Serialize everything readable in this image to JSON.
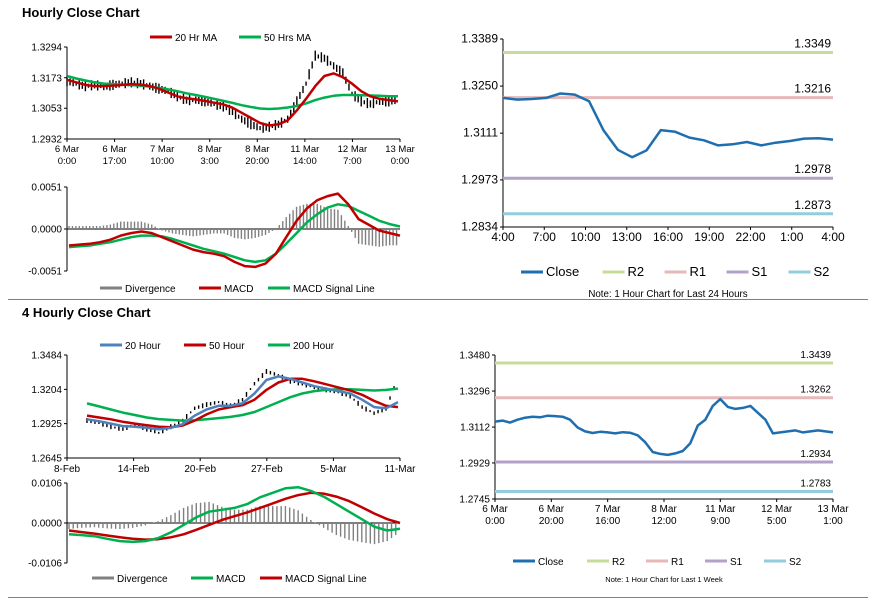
{
  "sections": {
    "hourly_title": "Hourly Close Chart",
    "four_hourly_title": "4 Hourly Close Chart"
  },
  "colors": {
    "close": "#1f6fb0",
    "r2": "#c5dc9a",
    "r1": "#e6b8b7",
    "s1": "#b3a2c7",
    "s2": "#93cddd",
    "ma_red": "#c00000",
    "ma_green": "#00b050",
    "ma_blue": "#4f81bd",
    "divergence": "#808080",
    "candle": "#000000"
  },
  "chart_data": [
    {
      "id": "hourly_price",
      "type": "line",
      "title": "",
      "legend": [
        {
          "name": "20 Hr MA",
          "color": "#c00000"
        },
        {
          "name": "50 Hrs MA",
          "color": "#00b050"
        }
      ],
      "x_tick_labels": [
        [
          "6 Mar",
          "0:00"
        ],
        [
          "6 Mar",
          "17:00"
        ],
        [
          "7 Mar",
          "10:00"
        ],
        [
          "8 Mar",
          "3:00"
        ],
        [
          "8 Mar",
          "20:00"
        ],
        [
          "11 Mar",
          "14:00"
        ],
        [
          "12 Mar",
          "7:00"
        ],
        [
          "13 Mar",
          "0:00"
        ]
      ],
      "y_tick_labels": [
        "1.3294",
        "1.3173",
        "1.3053",
        "1.2932"
      ],
      "ylim": [
        1.2932,
        1.3294
      ],
      "series": [
        {
          "name": "Price",
          "values": [
            1.316,
            1.315,
            1.314,
            1.3145,
            1.3138,
            1.3145,
            1.315,
            1.3155,
            1.315,
            1.314,
            1.313,
            1.312,
            1.31,
            1.3085,
            1.3085,
            1.308,
            1.307,
            1.306,
            1.304,
            1.301,
            1.299,
            1.2975,
            1.298,
            1.299,
            1.301,
            1.308,
            1.315,
            1.326,
            1.325,
            1.322,
            1.319,
            1.311,
            1.308,
            1.307,
            1.308,
            1.308,
            1.3085
          ]
        },
        {
          "name": "20 Hr MA",
          "values": [
            1.3165,
            1.3155,
            1.3145,
            1.314,
            1.314,
            1.3142,
            1.3145,
            1.3148,
            1.3146,
            1.314,
            1.313,
            1.3115,
            1.31,
            1.3092,
            1.3088,
            1.3082,
            1.3075,
            1.3068,
            1.3055,
            1.3035,
            1.3015,
            1.2995,
            1.2985,
            1.299,
            1.3005,
            1.3045,
            1.309,
            1.314,
            1.318,
            1.319,
            1.3175,
            1.315,
            1.312,
            1.31,
            1.309,
            1.3085,
            1.308
          ]
        },
        {
          "name": "50 Hrs MA",
          "values": [
            1.318,
            1.317,
            1.3162,
            1.3155,
            1.315,
            1.3148,
            1.3146,
            1.3144,
            1.3142,
            1.3138,
            1.3133,
            1.3127,
            1.312,
            1.3112,
            1.3105,
            1.3098,
            1.309,
            1.3082,
            1.3074,
            1.3065,
            1.3058,
            1.3052,
            1.305,
            1.3052,
            1.3056,
            1.3062,
            1.3072,
            1.3085,
            1.3095,
            1.3102,
            1.3105,
            1.3105,
            1.3104,
            1.3103,
            1.3102,
            1.31,
            1.31
          ]
        }
      ]
    },
    {
      "id": "hourly_macd",
      "type": "line",
      "legend": [
        {
          "name": "Divergence",
          "color": "#808080"
        },
        {
          "name": "MACD",
          "color": "#c00000"
        },
        {
          "name": "MACD Signal Line",
          "color": "#00b050"
        }
      ],
      "y_tick_labels": [
        "0.0051",
        "0.0000",
        "-0.0051"
      ],
      "ylim": [
        -0.0051,
        0.0051
      ],
      "series": [
        {
          "name": "MACD",
          "values": [
            -0.002,
            -0.0019,
            -0.0018,
            -0.0016,
            -0.0013,
            -0.0008,
            -0.0005,
            -0.0003,
            -0.0005,
            -0.001,
            -0.0015,
            -0.002,
            -0.0025,
            -0.0028,
            -0.003,
            -0.0033,
            -0.004,
            -0.0045,
            -0.0046,
            -0.0042,
            -0.003,
            -0.001,
            0.001,
            0.0025,
            0.0035,
            0.004,
            0.0043,
            0.003,
            0.0012,
            0.0005,
            -0.0002,
            -0.0005,
            -0.0008
          ]
        },
        {
          "name": "MACD Signal Line",
          "values": [
            -0.0022,
            -0.0021,
            -0.002,
            -0.0018,
            -0.0016,
            -0.0013,
            -0.001,
            -0.0008,
            -0.0008,
            -0.0009,
            -0.0012,
            -0.0016,
            -0.002,
            -0.0024,
            -0.0027,
            -0.003,
            -0.0034,
            -0.0038,
            -0.004,
            -0.0038,
            -0.003,
            -0.0018,
            -0.0005,
            0.0008,
            0.0018,
            0.0026,
            0.003,
            0.0028,
            0.0022,
            0.0016,
            0.001,
            0.0006,
            0.0003
          ]
        }
      ]
    },
    {
      "id": "hourly_levels",
      "type": "line",
      "legend": [
        {
          "name": "Close",
          "color": "#1f6fb0"
        },
        {
          "name": "R2",
          "color": "#c5dc9a"
        },
        {
          "name": "R1",
          "color": "#e6b8b7"
        },
        {
          "name": "S1",
          "color": "#b3a2c7"
        },
        {
          "name": "S2",
          "color": "#93cddd"
        }
      ],
      "x_tick_labels": [
        "4:00",
        "7:00",
        "10:00",
        "13:00",
        "16:00",
        "19:00",
        "22:00",
        "1:00",
        "4:00"
      ],
      "y_tick_labels": [
        "1.3389",
        "1.3250",
        "1.3111",
        "1.2973",
        "1.2834"
      ],
      "ylim": [
        1.2834,
        1.3389
      ],
      "levels": {
        "R2": 1.3349,
        "R1": 1.3216,
        "S1": 1.2978,
        "S2": 1.2873
      },
      "level_labels": [
        "1.3349",
        "1.3216",
        "1.2978",
        "1.2873"
      ],
      "series": [
        {
          "name": "Close",
          "values": [
            1.3215,
            1.321,
            1.3212,
            1.3215,
            1.3228,
            1.3225,
            1.3205,
            1.312,
            1.3062,
            1.304,
            1.306,
            1.312,
            1.3115,
            1.3098,
            1.309,
            1.3075,
            1.3078,
            1.3085,
            1.3075,
            1.3083,
            1.3088,
            1.3095,
            1.3096,
            1.3092
          ]
        }
      ],
      "note": "Note: 1 Hour Chart for Last 24 Hours"
    },
    {
      "id": "four_hourly_price",
      "type": "line",
      "legend": [
        {
          "name": "20 Hour",
          "color": "#4f81bd"
        },
        {
          "name": "50 Hour",
          "color": "#c00000"
        },
        {
          "name": "200 Hour",
          "color": "#00b050"
        }
      ],
      "x_tick_labels": [
        "8-Feb",
        "14-Feb",
        "20-Feb",
        "27-Feb",
        "5-Mar",
        "11-Mar"
      ],
      "y_tick_labels": [
        "1.3484",
        "1.3204",
        "1.2925",
        "1.2645"
      ],
      "ylim": [
        1.2645,
        1.3484
      ],
      "series": [
        {
          "name": "Price",
          "values": [
            1.295,
            1.293,
            1.29,
            1.288,
            1.292,
            1.288,
            1.285,
            1.29,
            1.295,
            1.305,
            1.308,
            1.31,
            1.307,
            1.312,
            1.325,
            1.335,
            1.332,
            1.327,
            1.325,
            1.322,
            1.32,
            1.318,
            1.315,
            1.306,
            1.301,
            1.305,
            1.33
          ]
        },
        {
          "name": "20 Hour",
          "values": [
            1.296,
            1.2945,
            1.2925,
            1.2905,
            1.29,
            1.2892,
            1.288,
            1.289,
            1.292,
            1.299,
            1.304,
            1.307,
            1.307,
            1.309,
            1.317,
            1.328,
            1.331,
            1.329,
            1.326,
            1.323,
            1.321,
            1.319,
            1.317,
            1.312,
            1.306,
            1.305,
            1.31
          ]
        },
        {
          "name": "50 Hour",
          "values": [
            1.299,
            1.2975,
            1.296,
            1.294,
            1.2925,
            1.2912,
            1.29,
            1.2895,
            1.291,
            1.295,
            1.3,
            1.304,
            1.306,
            1.3075,
            1.312,
            1.32,
            1.326,
            1.329,
            1.329,
            1.327,
            1.3245,
            1.322,
            1.3195,
            1.316,
            1.311,
            1.307,
            1.306
          ]
        },
        {
          "name": "200 Hour",
          "values": [
            1.309,
            1.3065,
            1.304,
            1.3015,
            1.2995,
            1.2975,
            1.2962,
            1.2955,
            1.295,
            1.2952,
            1.296,
            1.297,
            1.298,
            1.2995,
            1.302,
            1.306,
            1.31,
            1.314,
            1.317,
            1.319,
            1.32,
            1.3205,
            1.3205,
            1.32,
            1.3195,
            1.32,
            1.321
          ]
        }
      ]
    },
    {
      "id": "four_hourly_macd",
      "type": "line",
      "legend": [
        {
          "name": "Divergence",
          "color": "#808080"
        },
        {
          "name": "MACD",
          "color": "#00b050"
        },
        {
          "name": "MACD Signal Line",
          "color": "#c00000"
        }
      ],
      "y_tick_labels": [
        "0.0106",
        "0.0000",
        "-0.0106"
      ],
      "ylim": [
        -0.0106,
        0.0106
      ],
      "series": [
        {
          "name": "MACD",
          "values": [
            -0.003,
            -0.0032,
            -0.0035,
            -0.0042,
            -0.0048,
            -0.005,
            -0.0048,
            -0.004,
            -0.0025,
            -0.0005,
            0.0015,
            0.003,
            0.0035,
            0.004,
            0.005,
            0.0068,
            0.008,
            0.0092,
            0.0095,
            0.0085,
            0.007,
            0.005,
            0.003,
            0.001,
            -0.001,
            -0.002,
            -0.0015
          ]
        },
        {
          "name": "MACD Signal Line",
          "values": [
            -0.002,
            -0.0024,
            -0.0028,
            -0.0033,
            -0.0038,
            -0.0042,
            -0.0044,
            -0.0043,
            -0.0038,
            -0.003,
            -0.0018,
            -0.0005,
            0.0008,
            0.0018,
            0.0028,
            0.004,
            0.0052,
            0.0064,
            0.0074,
            0.008,
            0.0078,
            0.007,
            0.0058,
            0.0042,
            0.0025,
            0.001,
            0.0
          ]
        }
      ]
    },
    {
      "id": "four_hourly_levels",
      "type": "line",
      "legend": [
        {
          "name": "Close",
          "color": "#1f6fb0"
        },
        {
          "name": "R2",
          "color": "#c5dc9a"
        },
        {
          "name": "R1",
          "color": "#e6b8b7"
        },
        {
          "name": "S1",
          "color": "#b3a2c7"
        },
        {
          "name": "S2",
          "color": "#93cddd"
        }
      ],
      "x_tick_labels": [
        [
          "6 Mar",
          "0:00"
        ],
        [
          "6 Mar",
          "20:00"
        ],
        [
          "7 Mar",
          "16:00"
        ],
        [
          "8 Mar",
          "12:00"
        ],
        [
          "11 Mar",
          "9:00"
        ],
        [
          "12 Mar",
          "5:00"
        ],
        [
          "13 Mar",
          "1:00"
        ]
      ],
      "y_tick_labels": [
        "1.3480",
        "1.3296",
        "1.3112",
        "1.2929",
        "1.2745"
      ],
      "ylim": [
        1.2745,
        1.348
      ],
      "levels": {
        "R2": 1.3439,
        "R1": 1.3262,
        "S1": 1.2934,
        "S2": 1.2783
      },
      "level_labels": [
        "1.3439",
        "1.3262",
        "1.2934",
        "1.2783"
      ],
      "series": [
        {
          "name": "Close",
          "values": [
            1.314,
            1.3145,
            1.3135,
            1.315,
            1.316,
            1.3165,
            1.3162,
            1.317,
            1.3168,
            1.3165,
            1.315,
            1.311,
            1.309,
            1.3082,
            1.3088,
            1.3085,
            1.308,
            1.3086,
            1.3083,
            1.307,
            1.3035,
            1.2985,
            1.2975,
            1.297,
            1.2978,
            1.299,
            1.303,
            1.312,
            1.315,
            1.322,
            1.3255,
            1.3215,
            1.3205,
            1.321,
            1.322,
            1.3185,
            1.315,
            1.308,
            1.3085,
            1.309,
            1.3095,
            1.3085,
            1.309,
            1.3095,
            1.309,
            1.3085
          ]
        }
      ],
      "note": "Note: 1 Hour Chart for Last 1 Week"
    }
  ]
}
